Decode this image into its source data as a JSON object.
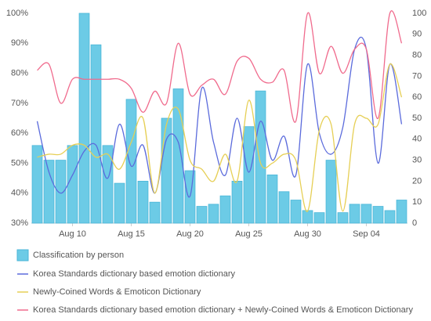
{
  "chart_data": {
    "type": "combo",
    "categories": [
      null,
      null,
      null,
      "Aug 10",
      null,
      null,
      null,
      null,
      "Aug 15",
      null,
      null,
      null,
      null,
      "Aug 20",
      null,
      null,
      null,
      null,
      "Aug 25",
      null,
      null,
      null,
      null,
      "Aug 30",
      null,
      null,
      null,
      null,
      "Sep 04",
      null,
      null,
      null
    ],
    "series": [
      {
        "name": "Classification by person",
        "type": "bar",
        "axis": "y2",
        "color": "#6ccbe6",
        "values": [
          37,
          30,
          30,
          37,
          100,
          85,
          37,
          19,
          59,
          20,
          10,
          50,
          64,
          25,
          8,
          9,
          13,
          20,
          46,
          63,
          23,
          15,
          11,
          6,
          5,
          30,
          5,
          9,
          9,
          8,
          6,
          11
        ]
      },
      {
        "name": "Korea Standards dictionary based emotion dictionary",
        "type": "line",
        "axis": "y",
        "color": "#5b6bdc",
        "values": [
          64,
          47,
          40,
          46,
          54,
          56,
          45,
          63,
          49,
          56,
          40,
          58,
          57,
          39,
          75,
          57,
          46,
          65,
          47,
          64,
          51,
          59,
          46,
          83,
          60,
          53,
          62,
          88,
          88,
          50,
          83,
          63
        ]
      },
      {
        "name": "Newly-Coined Words & Emoticon Dictionary",
        "type": "line",
        "axis": "y",
        "color": "#e6cf55",
        "values": [
          52,
          53,
          53,
          56,
          56,
          52,
          53,
          48,
          57,
          65,
          40,
          63,
          68,
          51,
          48,
          44,
          53,
          44,
          71,
          50,
          50,
          53,
          51,
          34,
          61,
          63,
          34,
          63,
          65,
          63,
          83,
          72
        ]
      },
      {
        "name": "Korea Standards dictionary based emotion dictionary + Newly-Coined Words & Emoticon Dictionary",
        "type": "line",
        "axis": "y",
        "color": "#f06b8d",
        "values": [
          81,
          83,
          70,
          78,
          78,
          78,
          78,
          78,
          75,
          67,
          74,
          70,
          90,
          73,
          76,
          78,
          73,
          84,
          85,
          78,
          77,
          81,
          64,
          100,
          80,
          89,
          80,
          88,
          88,
          65,
          100,
          90
        ]
      }
    ],
    "ylim": [
      30,
      100
    ],
    "yticks": [
      {
        "value": 30,
        "label": "30%"
      },
      {
        "value": 40,
        "label": "40%"
      },
      {
        "value": 50,
        "label": "50%"
      },
      {
        "value": 60,
        "label": "60%"
      },
      {
        "value": 70,
        "label": "70%"
      },
      {
        "value": 80,
        "label": "80%"
      },
      {
        "value": 90,
        "label": "90%"
      },
      {
        "value": 100,
        "label": "100%"
      }
    ],
    "y2lim": [
      0,
      100
    ],
    "y2ticks": [
      0,
      10,
      20,
      30,
      40,
      50,
      60,
      70,
      80,
      90,
      100
    ],
    "grid": false
  }
}
